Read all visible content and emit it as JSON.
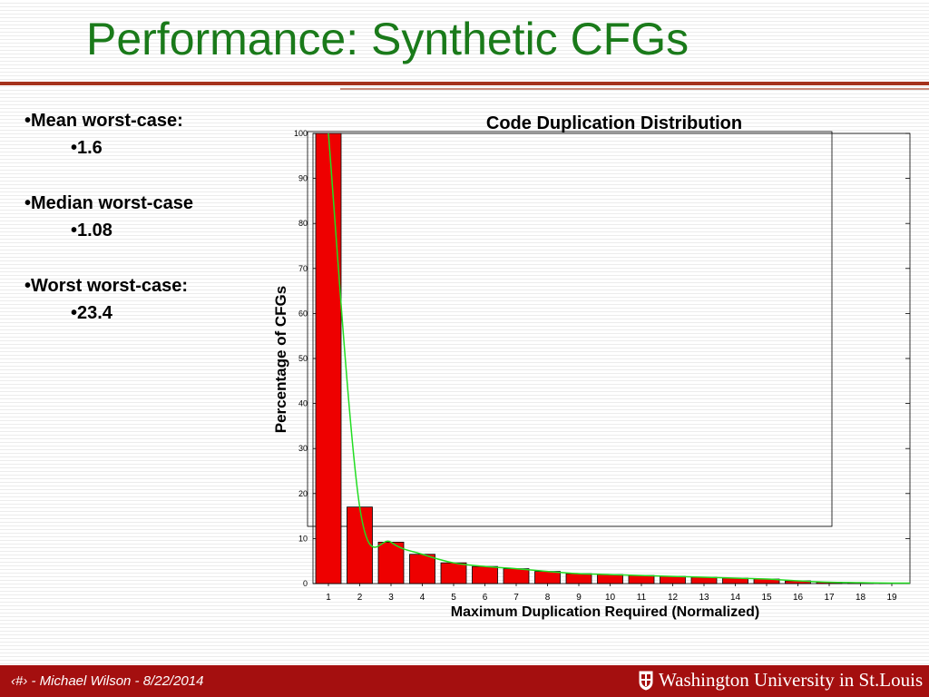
{
  "slide": {
    "title": "Performance: Synthetic CFGs"
  },
  "bullets": [
    {
      "label": "•Mean worst-case:",
      "value": "•1.6"
    },
    {
      "label": "•Median worst-case",
      "value": "•1.08"
    },
    {
      "label": "•Worst worst-case:",
      "value": "•23.4"
    }
  ],
  "chart_data": {
    "type": "bar",
    "title": "Code Duplication Distribution",
    "xlabel": "Maximum Duplication Required (Normalized)",
    "ylabel": "Percentage of CFGs",
    "categories": [
      "1",
      "2",
      "3",
      "4",
      "5",
      "6",
      "7",
      "8",
      "9",
      "10",
      "11",
      "12",
      "13",
      "14",
      "15",
      "16",
      "17",
      "18",
      "19"
    ],
    "values": [
      100,
      17,
      9.2,
      6.5,
      4.6,
      3.8,
      3.3,
      2.7,
      2.2,
      2.0,
      1.8,
      1.6,
      1.4,
      1.2,
      1.0,
      0.6,
      0.3,
      0.2,
      0.1
    ],
    "trend_line": [
      100,
      17,
      9.2,
      6.5,
      4.6,
      3.8,
      3.3,
      2.7,
      2.2,
      2.0,
      1.8,
      1.6,
      1.4,
      1.2,
      1.0,
      0.6,
      0.3,
      0.2,
      0.1
    ],
    "yticks": [
      0,
      10,
      20,
      30,
      40,
      50,
      60,
      70,
      80,
      90,
      100
    ],
    "ylim": [
      0,
      100
    ],
    "bar_color": "#ee0000",
    "trend_color": "#22dd22",
    "grid": false
  },
  "footer": {
    "text": "‹#› -  Michael Wilson - 8/22/2014",
    "logo_text": "Washington University in St.Louis",
    "background": "#a40f0f"
  }
}
